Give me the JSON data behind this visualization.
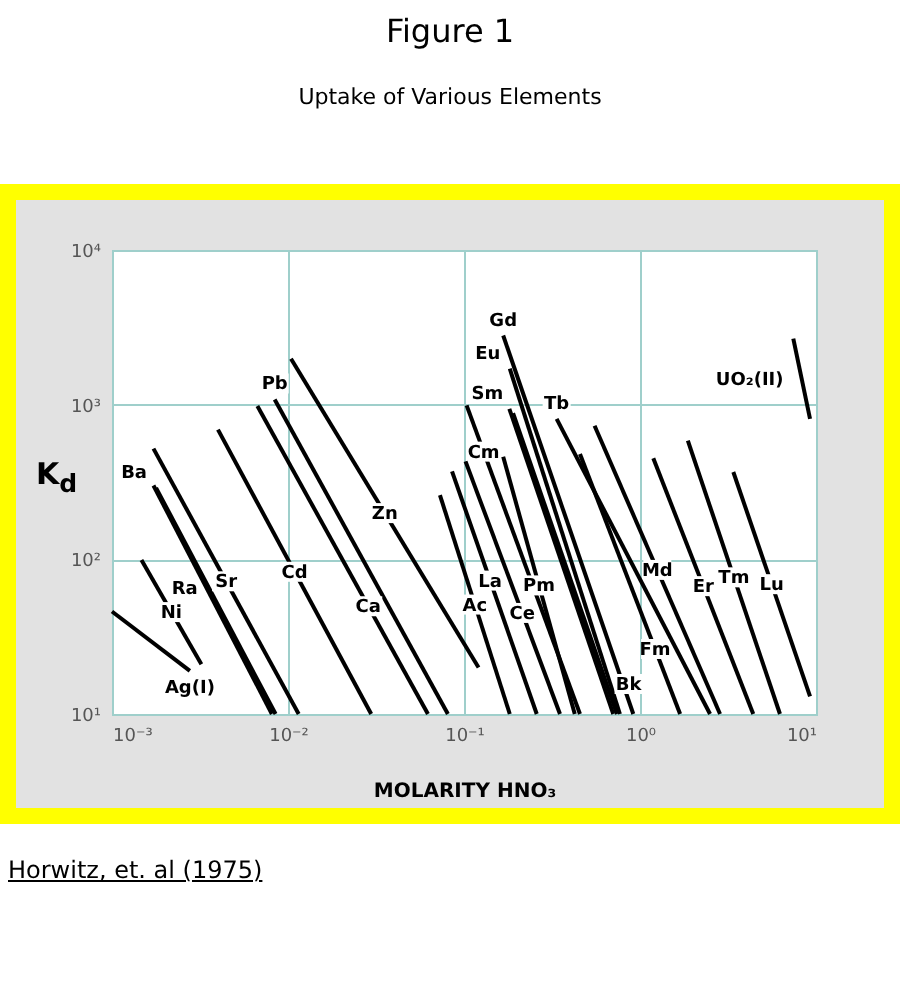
{
  "chart_data": {
    "type": "line",
    "title": "Figure 1",
    "subtitle": "Uptake of Various Elements",
    "xlabel": "MOLARITY HNO₃",
    "ylabel": "K$_{d}$",
    "log": "xy",
    "grid": true,
    "xlim": [
      0.001,
      10
    ],
    "xticks": [
      {
        "value": 0.001,
        "label": "10⁻³"
      },
      {
        "value": 0.01,
        "label": "10⁻²"
      },
      {
        "value": 0.1,
        "label": "10⁻¹"
      },
      {
        "value": 1,
        "label": "10⁰"
      },
      {
        "value": 10,
        "label": "10¹"
      }
    ],
    "ylim": [
      10,
      10000
    ],
    "yticks": [
      {
        "value": 10,
        "label": "10¹"
      },
      {
        "value": 100,
        "label": "10²"
      },
      {
        "value": 1000,
        "label": "10³"
      },
      {
        "value": 10000,
        "label": "10⁴"
      }
    ],
    "series": [
      {
        "name": "Ag(I)",
        "color": "#000000",
        "x": [
          0.001,
          0.00277
        ],
        "values": [
          46,
          19
        ]
      },
      {
        "name": "Ni",
        "color": "#000000",
        "x": [
          0.00147,
          0.00322
        ],
        "values": [
          99,
          21
        ]
      },
      {
        "name": "Ra",
        "color": "#000000",
        "x": [
          0.00172,
          0.0081
        ],
        "values": [
          300,
          10
        ]
      },
      {
        "name": "Ba",
        "color": "#000000",
        "x": [
          0.00178,
          0.0085
        ],
        "values": [
          290,
          10
        ]
      },
      {
        "name": "Sr",
        "color": "#000000",
        "x": [
          0.00172,
          0.0115
        ],
        "values": [
          520,
          10
        ]
      },
      {
        "name": "Cd",
        "color": "#000000",
        "x": [
          0.004,
          0.0297
        ],
        "values": [
          690,
          10
        ]
      },
      {
        "name": "Ca",
        "color": "#000000",
        "x": [
          0.0067,
          0.0624
        ],
        "values": [
          980,
          10
        ]
      },
      {
        "name": "Pb",
        "color": "#000000",
        "x": [
          0.0084,
          0.081
        ],
        "values": [
          1080,
          10
        ]
      },
      {
        "name": "Zn",
        "color": "#000000",
        "x": [
          0.0104,
          0.121
        ],
        "values": [
          1980,
          20
        ]
      },
      {
        "name": "Ac",
        "color": "#000000",
        "x": [
          0.073,
          0.182
        ],
        "values": [
          260,
          10
        ]
      },
      {
        "name": "La",
        "color": "#000000",
        "x": [
          0.0855,
          0.259
        ],
        "values": [
          370,
          10
        ]
      },
      {
        "name": "Ce",
        "color": "#000000",
        "x": [
          0.102,
          0.351
        ],
        "values": [
          430,
          10
        ]
      },
      {
        "name": "Cm",
        "color": "#000000",
        "x": [
          0.1035,
          0.456
        ],
        "values": [
          990,
          10
        ]
      },
      {
        "name": "Pm",
        "color": "#000000",
        "x": [
          0.167,
          0.426
        ],
        "values": [
          460,
          10
        ]
      },
      {
        "name": "Gd",
        "color": "#000000",
        "x": [
          0.167,
          0.916
        ],
        "values": [
          2800,
          10
        ]
      },
      {
        "name": "Eu",
        "color": "#000000",
        "x": [
          0.182,
          0.769
        ],
        "values": [
          1710,
          10
        ]
      },
      {
        "name": "Sm",
        "color": "#000000",
        "x": [
          0.181,
          0.705
        ],
        "values": [
          940,
          10
        ]
      },
      {
        "name": "Bk",
        "color": "#000000",
        "x": [
          0.19,
          0.74
        ],
        "values": [
          880,
          10
        ]
      },
      {
        "name": "Tb",
        "color": "#000000",
        "x": [
          0.336,
          2.5
        ],
        "values": [
          810,
          10
        ]
      },
      {
        "name": "Fm",
        "color": "#000000",
        "x": [
          0.456,
          1.69
        ],
        "values": [
          480,
          10
        ]
      },
      {
        "name": "Md",
        "color": "#000000",
        "x": [
          0.552,
          2.85
        ],
        "values": [
          730,
          10
        ]
      },
      {
        "name": "Er",
        "color": "#000000",
        "x": [
          1.19,
          4.4
        ],
        "values": [
          450,
          10
        ]
      },
      {
        "name": "Tm",
        "color": "#000000",
        "x": [
          1.87,
          6.24
        ],
        "values": [
          585,
          10
        ]
      },
      {
        "name": "Lu",
        "color": "#000000",
        "x": [
          3.39,
          9.25
        ],
        "values": [
          367,
          13
        ]
      },
      {
        "name": "UO₂(II)",
        "color": "#000000",
        "x": [
          7.43,
          9.25
        ],
        "values": [
          2670,
          810
        ]
      }
    ],
    "annotations": [
      "Horwitz, et. al (1975)"
    ]
  }
}
